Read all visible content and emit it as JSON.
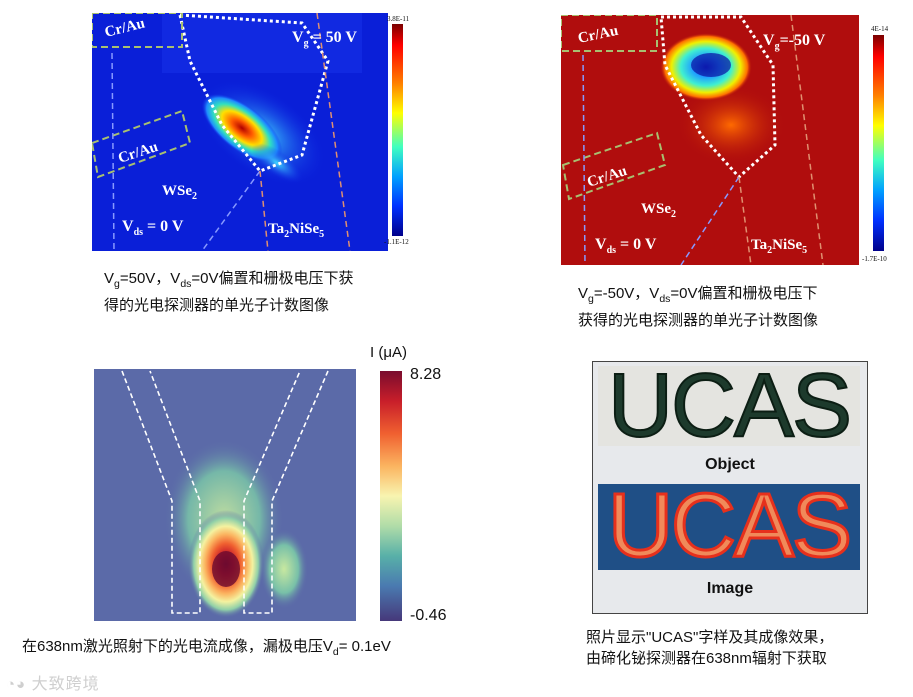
{
  "panel1": {
    "labels": {
      "cr_au_top": "Cr/Au",
      "cr_au_mid": "Cr/Au",
      "vg": "V = 50 V",
      "vg_sub": "g",
      "wse2": "WSe",
      "wse2_sub": "2",
      "vds": "V",
      "vds_sub": "ds",
      "vds_val": " = 0 V",
      "ta": "Ta",
      "ta2": "2",
      "ni": "NiSe",
      "ni5": "5"
    },
    "colorbar": {
      "max": "3.8E-11",
      "min": "-1.1E-12"
    },
    "caption_line1": "Vg=50V，Vds=0V偏置和栅极电压下获",
    "caption_line2": "得的光电探测器的单光子计数图像"
  },
  "panel2": {
    "labels": {
      "cr_au_top": "Cr/Au",
      "cr_au_mid": "Cr/Au",
      "vg": "V",
      "vg_sub": "g",
      "vg_val": " = -50 V",
      "wse2": "WSe",
      "wse2_sub": "2",
      "vds": "V",
      "vds_sub": "ds",
      "vds_val": " = 0 V",
      "ta": "Ta",
      "ta2": "2",
      "ni": "NiSe",
      "ni5": "5"
    },
    "colorbar": {
      "max": "4E-14",
      "min": "-1.7E-10"
    },
    "caption_line1": "Vg=-50V，Vds=0V偏置和栅极电压下",
    "caption_line2": "获得的光电探测器的单光子计数图像"
  },
  "panel3": {
    "colorbar": {
      "title": "I (μA)",
      "max": "8.28",
      "min": "-0.46"
    },
    "caption": "在638nm激光照射下的光电流成像，漏极电压Vd= 0.1eV"
  },
  "panel4": {
    "object_text": "UCAS",
    "object_label": "Object",
    "image_text": "UCAS",
    "image_label": "Image",
    "caption_line1": "照片显示\"UCAS\"字样及其成像效果，",
    "caption_line2": "由碲化铋探测器在638nm辐射下获取"
  },
  "watermark": "大致跨境",
  "colors": {
    "deep_blue": "#0a1fd8",
    "deep_red": "#b00d0d",
    "viridis_bg": "#5b6aa8",
    "ucas_panel": "#e7e9ec",
    "ucas_image_bg": "#1f4f86"
  }
}
